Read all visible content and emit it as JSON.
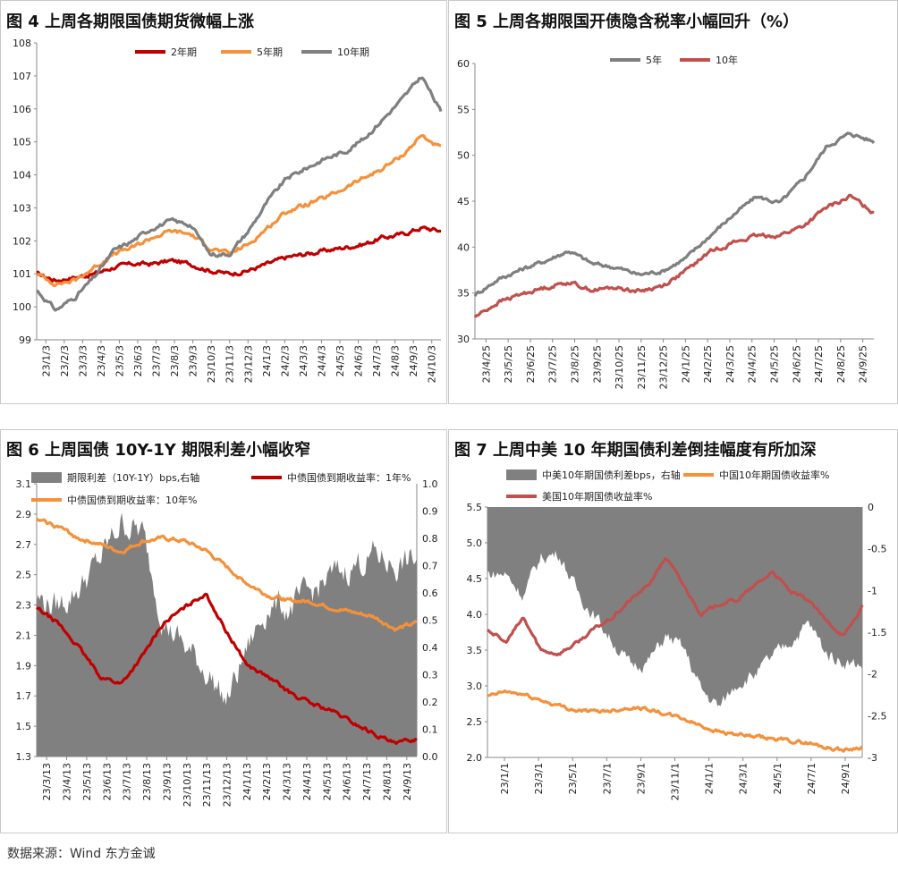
{
  "footer": "数据来源：Wind 东方金诚",
  "colors": {
    "red": "#c00000",
    "orange": "#f4913a",
    "gray": "#7f7f7f",
    "darkred": "#c0504d",
    "spread": "#808080"
  },
  "chart_data": [
    {
      "id": "fig4",
      "type": "line",
      "title": "图 4  上周各期限国债期货微幅上涨",
      "ylim": [
        99,
        108
      ],
      "yticks": [
        "99",
        "100",
        "101",
        "102",
        "103",
        "104",
        "105",
        "106",
        "107",
        "108"
      ],
      "xticks": [
        "23/1/3",
        "23/2/3",
        "23/3/3",
        "23/4/3",
        "23/5/3",
        "23/6/3",
        "23/7/3",
        "23/8/3",
        "23/9/3",
        "23/10/3",
        "23/11/3",
        "23/12/3",
        "24/1/3",
        "24/2/3",
        "24/3/3",
        "24/4/3",
        "24/5/3",
        "24/6/3",
        "24/7/3",
        "24/8/3",
        "24/9/3",
        "24/10/3"
      ],
      "series": [
        {
          "name": "2年期",
          "color": "#c00000",
          "values": [
            101.0,
            100.8,
            100.9,
            101.0,
            101.2,
            101.3,
            101.3,
            101.4,
            101.3,
            101.1,
            101.0,
            101.1,
            101.3,
            101.5,
            101.6,
            101.7,
            101.8,
            101.9,
            102.1,
            102.2,
            102.4,
            102.3
          ]
        },
        {
          "name": "5年期",
          "color": "#f4913a",
          "values": [
            101.0,
            100.7,
            100.8,
            101.2,
            101.6,
            101.8,
            102.1,
            102.3,
            102.2,
            101.8,
            101.6,
            101.9,
            102.4,
            102.9,
            103.1,
            103.3,
            103.6,
            103.9,
            104.2,
            104.6,
            105.2,
            104.8
          ]
        },
        {
          "name": "10年期",
          "color": "#7f7f7f",
          "values": [
            100.5,
            99.9,
            100.3,
            100.9,
            101.7,
            102.0,
            102.4,
            102.6,
            102.5,
            101.6,
            101.6,
            102.3,
            103.2,
            103.9,
            104.2,
            104.5,
            104.7,
            105.1,
            105.7,
            106.3,
            107.0,
            105.9
          ]
        }
      ]
    },
    {
      "id": "fig5",
      "type": "line",
      "title": "图 5  上周各期限国开债隐含税率小幅回升（%）",
      "ylim": [
        30,
        60
      ],
      "yticks": [
        "30",
        "35",
        "40",
        "45",
        "50",
        "55",
        "60"
      ],
      "xticks": [
        "23/4/25",
        "23/5/25",
        "23/6/25",
        "23/7/25",
        "23/8/25",
        "23/9/25",
        "23/10/25",
        "23/11/25",
        "23/12/25",
        "24/1/25",
        "24/2/25",
        "24/3/25",
        "24/4/25",
        "24/5/25",
        "24/6/25",
        "24/7/25",
        "24/8/25",
        "24/9/25"
      ],
      "series": [
        {
          "name": "5年",
          "color": "#7f7f7f",
          "values": [
            34.8,
            36.5,
            37.6,
            38.5,
            39.6,
            38.2,
            37.8,
            37.0,
            37.4,
            38.8,
            41.2,
            43.5,
            45.5,
            44.8,
            47.4,
            51.0,
            52.4,
            51.5
          ]
        },
        {
          "name": "10年",
          "color": "#c0504d",
          "values": [
            32.4,
            34.0,
            34.9,
            35.6,
            36.2,
            35.3,
            35.6,
            35.2,
            35.8,
            37.4,
            39.5,
            40.5,
            41.2,
            41.3,
            42.3,
            44.3,
            45.5,
            43.8
          ]
        }
      ]
    },
    {
      "id": "fig6",
      "type": "line",
      "title": "图 6  上周国债 10Y-1Y 期限利差小幅收窄",
      "ylim": [
        1.3,
        3.1
      ],
      "yticks": [
        "1.3",
        "1.5",
        "1.7",
        "1.9",
        "2.1",
        "2.3",
        "2.5",
        "2.7",
        "2.9",
        "3.1"
      ],
      "y2lim": [
        0.0,
        1.0
      ],
      "y2ticks": [
        "0.0",
        "0.1",
        "0.2",
        "0.3",
        "0.4",
        "0.5",
        "0.6",
        "0.7",
        "0.8",
        "0.9",
        "1.0"
      ],
      "xticks": [
        "23/3/13",
        "23/4/13",
        "23/5/13",
        "23/6/13",
        "23/7/13",
        "23/8/13",
        "23/9/13",
        "23/10/13",
        "23/11/13",
        "23/12/13",
        "24/1/13",
        "24/2/13",
        "24/3/13",
        "24/4/13",
        "24/5/13",
        "24/6/13",
        "24/7/13",
        "24/8/13",
        "24/9/13"
      ],
      "series": [
        {
          "name": "期限利差（10Y-1Y）bps,右轴",
          "color": "#808080",
          "kind": "area",
          "axis": "right",
          "values": [
            0.58,
            0.55,
            0.62,
            0.72,
            0.86,
            0.82,
            0.5,
            0.4,
            0.32,
            0.2,
            0.4,
            0.56,
            0.54,
            0.6,
            0.66,
            0.7,
            0.74,
            0.7,
            0.72
          ]
        },
        {
          "name": "中债国债到期收益率：1年%",
          "color": "#c00000",
          "axis": "left",
          "values": [
            2.28,
            2.18,
            2.02,
            1.83,
            1.78,
            1.96,
            2.18,
            2.28,
            2.38,
            2.12,
            1.9,
            1.82,
            1.72,
            1.65,
            1.6,
            1.52,
            1.45,
            1.38,
            1.42
          ]
        },
        {
          "name": "中债国债到期收益率：10年%",
          "color": "#f4913a",
          "axis": "left",
          "values": [
            2.86,
            2.82,
            2.74,
            2.7,
            2.65,
            2.72,
            2.74,
            2.72,
            2.66,
            2.55,
            2.44,
            2.36,
            2.33,
            2.32,
            2.28,
            2.25,
            2.22,
            2.14,
            2.18
          ]
        }
      ]
    },
    {
      "id": "fig7",
      "type": "line",
      "title": "图 7  上周中美 10 年期国债利差倒挂幅度有所加深",
      "ylim": [
        2.0,
        5.5
      ],
      "yticks": [
        "2.0",
        "2.5",
        "3.0",
        "3.5",
        "4.0",
        "4.5",
        "5.0",
        "5.5"
      ],
      "y2lim": [
        -3,
        0
      ],
      "y2ticks": [
        "0",
        "-0.5",
        "-1",
        "-1.5",
        "-2",
        "-2.5",
        "-3"
      ],
      "xticks": [
        "23/1/1",
        "23/3/1",
        "23/5/1",
        "23/7/1",
        "23/9/1",
        "23/11/1",
        "24/1/1",
        "24/3/1",
        "24/5/1",
        "24/7/1",
        "24/9/1"
      ],
      "series": [
        {
          "name": "中美10年期国债利差bps，右轴",
          "color": "#808080",
          "kind": "area",
          "axis": "right",
          "values": [
            -0.8,
            -0.8,
            -1.05,
            -0.6,
            -0.55,
            -1.0,
            -1.3,
            -1.6,
            -1.9,
            -1.85,
            -1.55,
            -1.7,
            -2.2,
            -2.4,
            -2.1,
            -2.0,
            -1.8,
            -1.6,
            -1.4,
            -1.75,
            -1.85,
            -1.9
          ]
        },
        {
          "name": "中国10年期国债收益率%",
          "color": "#f4913a",
          "axis": "left",
          "values": [
            2.85,
            2.92,
            2.88,
            2.8,
            2.72,
            2.66,
            2.64,
            2.66,
            2.7,
            2.68,
            2.6,
            2.54,
            2.44,
            2.36,
            2.32,
            2.28,
            2.26,
            2.23,
            2.2,
            2.14,
            2.1,
            2.15
          ]
        },
        {
          "name": "美国10年期国债收益率%",
          "color": "#c0504d",
          "axis": "left",
          "values": [
            3.8,
            3.6,
            3.95,
            3.5,
            3.45,
            3.6,
            3.8,
            3.95,
            4.2,
            4.4,
            4.8,
            4.4,
            4.0,
            4.15,
            4.2,
            4.4,
            4.6,
            4.3,
            4.2,
            3.9,
            3.7,
            4.1
          ]
        }
      ]
    }
  ]
}
